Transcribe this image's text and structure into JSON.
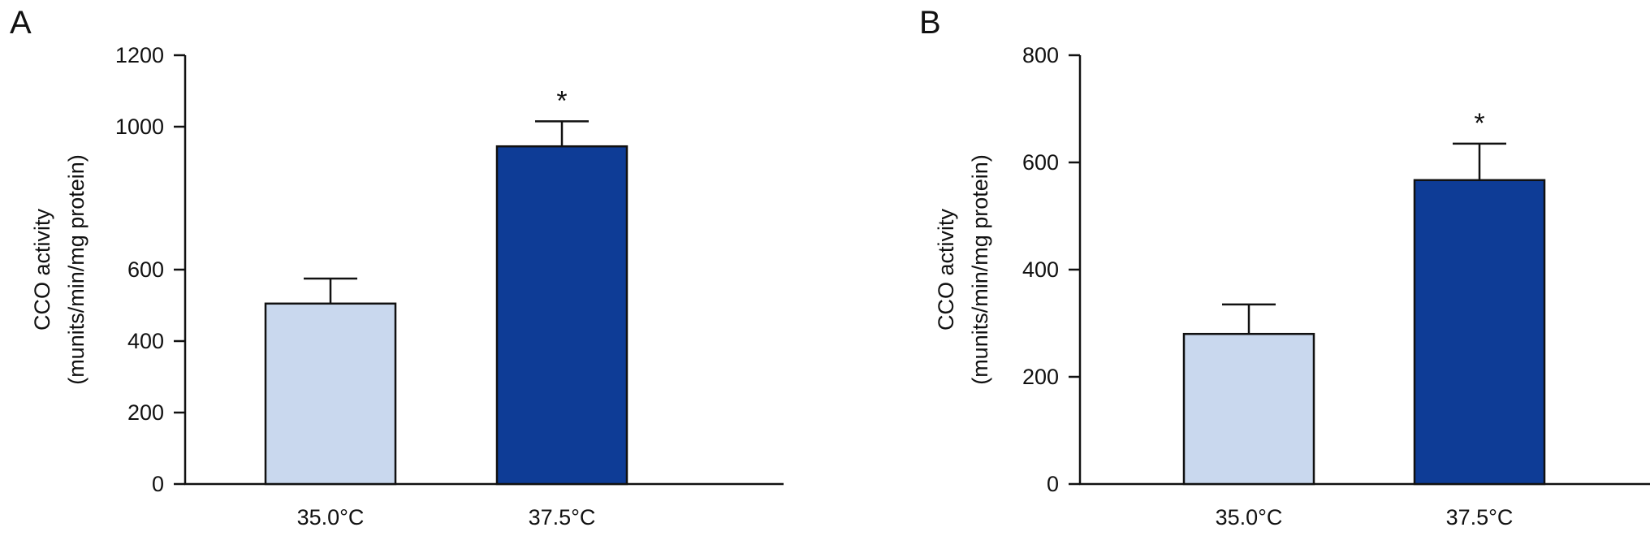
{
  "chart_data": [
    {
      "type": "bar",
      "panel_label": "A",
      "categories": [
        "35.0°C",
        "37.5°C"
      ],
      "values": [
        505,
        945
      ],
      "errors": [
        70,
        70
      ],
      "significance": [
        "",
        "*"
      ],
      "bar_colors": [
        "#c9d8ee",
        "#0e3c96"
      ],
      "ylabel_lines": [
        "CCO activity",
        "(munits/min/mg protein)"
      ],
      "ylim": [
        0,
        1200
      ],
      "yticks": [
        0,
        200,
        400,
        600,
        1000,
        1200
      ],
      "ytick_labels": [
        "0",
        "200",
        "400",
        "600",
        "1000",
        "1200"
      ],
      "grid": false
    },
    {
      "type": "bar",
      "panel_label": "B",
      "categories": [
        "35.0°C",
        "37.5°C"
      ],
      "values": [
        280,
        567
      ],
      "errors": [
        55,
        68
      ],
      "significance": [
        "",
        "*"
      ],
      "bar_colors": [
        "#c9d8ee",
        "#0e3c96"
      ],
      "ylabel_lines": [
        "CCO activity",
        "(munits/min/mg protein)"
      ],
      "ylim": [
        0,
        800
      ],
      "yticks": [
        0,
        200,
        400,
        600,
        800
      ],
      "ytick_labels": [
        "0",
        "200",
        "400",
        "600",
        "800"
      ],
      "grid": false
    }
  ]
}
